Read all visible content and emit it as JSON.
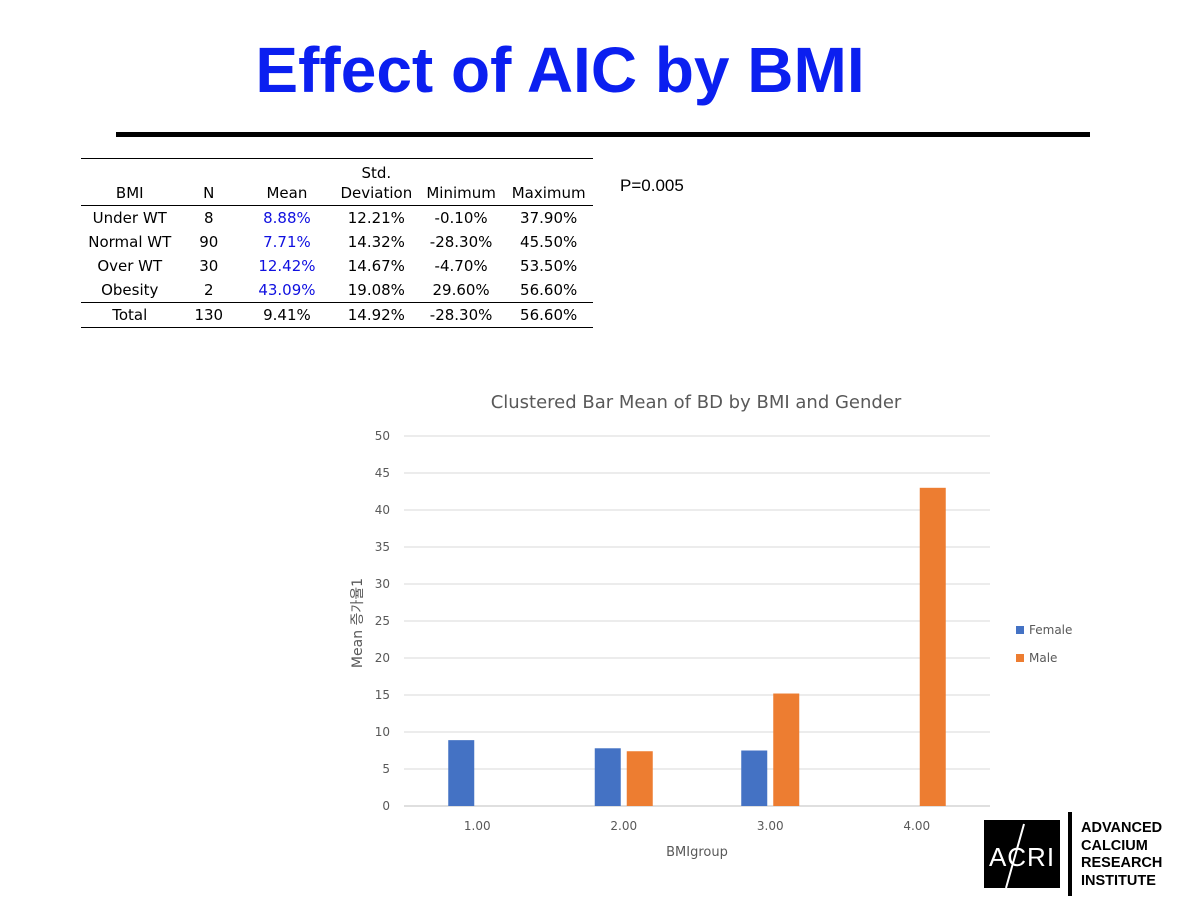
{
  "slide": {
    "title": "Effect of AIC by BMI",
    "p_value": "P=0.005"
  },
  "table": {
    "headers": {
      "bmi": "BMI",
      "n": "N",
      "mean": "Mean",
      "sd_line1": "Std.",
      "sd_line2": "Deviation",
      "min": "Minimum",
      "max": "Maximum"
    },
    "rows": [
      {
        "bmi": "Under WT",
        "n": "8",
        "mean": "8.88%",
        "sd": "12.21%",
        "min": "-0.10%",
        "max": "37.90%"
      },
      {
        "bmi": "Normal WT",
        "n": "90",
        "mean": "7.71%",
        "sd": "14.32%",
        "min": "-28.30%",
        "max": "45.50%"
      },
      {
        "bmi": "Over WT",
        "n": "30",
        "mean": "12.42%",
        "sd": "14.67%",
        "min": "-4.70%",
        "max": "53.50%"
      },
      {
        "bmi": "Obesity",
        "n": "2",
        "mean": "43.09%",
        "sd": "19.08%",
        "min": "29.60%",
        "max": "56.60%"
      }
    ],
    "total": {
      "bmi": "Total",
      "n": "130",
      "mean": "9.41%",
      "sd": "14.92%",
      "min": "-28.30%",
      "max": "56.60%"
    },
    "mean_highlight_color": "#1010e0"
  },
  "chart_data": {
    "type": "bar",
    "title": "Clustered Bar Mean of BD by BMI and Gender",
    "xlabel": "BMIgroup",
    "ylabel": "Mean 증가율1",
    "categories": [
      "1.00",
      "2.00",
      "3.00",
      "4.00"
    ],
    "series": [
      {
        "name": "Female",
        "color": "#4472c4",
        "values": [
          8.9,
          7.8,
          7.5,
          null
        ]
      },
      {
        "name": "Male",
        "color": "#ed7d31",
        "values": [
          null,
          7.4,
          15.2,
          43.0
        ]
      }
    ],
    "ylim": [
      0,
      50
    ],
    "yticks": [
      "0",
      "5",
      "10",
      "15",
      "20",
      "25",
      "30",
      "35",
      "40",
      "45",
      "50"
    ],
    "grid": true,
    "legend_position": "right"
  },
  "logo": {
    "mark": "ACRI",
    "lines": [
      "ADVANCED",
      "CALCIUM",
      "RESEARCH",
      "INSTITUTE"
    ]
  }
}
